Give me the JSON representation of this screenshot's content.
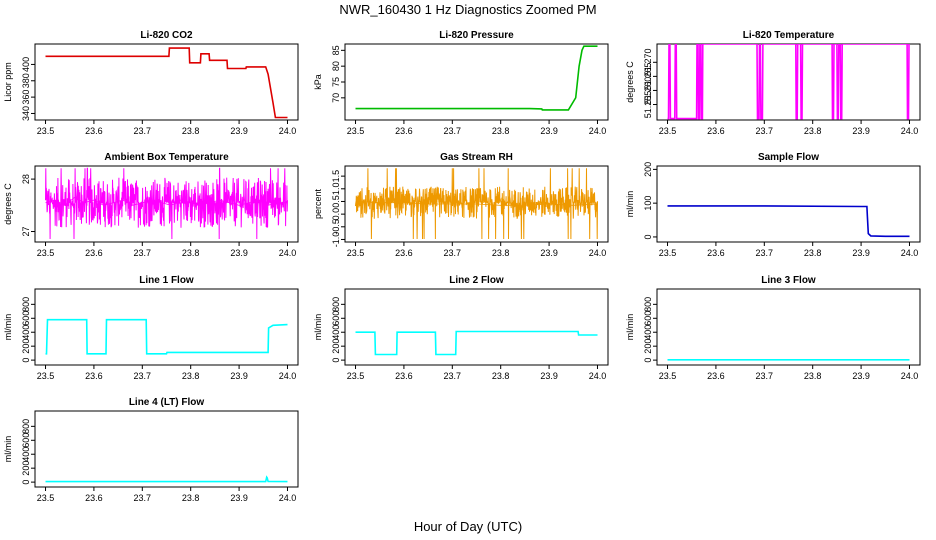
{
  "title": "NWR_160430  1 Hz Diagnostics Zoomed PM",
  "xlabel": "Hour of Day (UTC)",
  "chart_data": [
    {
      "type": "line",
      "title": "Li-820 CO2",
      "ylabel": "Licor ppm",
      "color": "#dd0000",
      "xlim": [
        23.5,
        24.0
      ],
      "ylim": [
        332,
        425
      ],
      "xticks": [
        23.5,
        23.6,
        23.7,
        23.8,
        23.9,
        24.0
      ],
      "yticks": [
        340,
        360,
        380,
        400
      ],
      "x": [
        23.5,
        23.755,
        23.756,
        23.762,
        23.797,
        23.798,
        23.82,
        23.821,
        23.838,
        23.839,
        23.875,
        23.876,
        23.914,
        23.915,
        23.955,
        23.96,
        23.97,
        23.975,
        24.0
      ],
      "y": [
        410,
        410,
        420,
        420,
        420,
        402,
        402,
        413,
        413,
        405,
        405,
        395,
        395,
        397,
        397,
        388,
        353,
        335,
        335
      ]
    },
    {
      "type": "line",
      "title": "Li-820 Pressure",
      "ylabel": "kPa",
      "color": "#00bb00",
      "xlim": [
        23.5,
        24.0
      ],
      "ylim": [
        63,
        87
      ],
      "xticks": [
        23.5,
        23.6,
        23.7,
        23.8,
        23.9,
        24.0
      ],
      "yticks": [
        70,
        75,
        80,
        85
      ],
      "x": [
        23.5,
        23.7,
        23.86,
        23.885,
        23.886,
        23.94,
        23.955,
        23.962,
        23.968,
        23.972,
        24.0
      ],
      "y": [
        66.6,
        66.6,
        66.6,
        66.5,
        66.2,
        66.2,
        70,
        80,
        85,
        86.3,
        86.3
      ]
    },
    {
      "type": "line",
      "title": "Li-820 Temperature",
      "ylabel": "degrees C",
      "color": "#ff00ff",
      "xlim": [
        23.5,
        24.0
      ],
      "ylim": [
        51.2495,
        51.2765
      ],
      "xticks": [
        23.5,
        23.6,
        23.7,
        23.8,
        23.9,
        24.0
      ],
      "yticks": [
        51.255,
        51.26,
        51.265,
        51.27
      ],
      "x": [
        23.5,
        23.502,
        23.503,
        23.505,
        23.506,
        23.515,
        23.516,
        23.518,
        23.519,
        23.56,
        23.561,
        23.563,
        23.564,
        23.566,
        23.567,
        23.569,
        23.57,
        23.572,
        23.573,
        23.685,
        23.686,
        23.689,
        23.69,
        23.692,
        23.693,
        23.696,
        23.697,
        23.765,
        23.766,
        23.768,
        23.769,
        23.775,
        23.776,
        23.778,
        23.779,
        23.84,
        23.841,
        23.843,
        23.844,
        23.85,
        23.851,
        23.853,
        23.854,
        23.857,
        23.858,
        23.86,
        23.861,
        23.995,
        23.996,
        23.998,
        23.999,
        24.0
      ],
      "y": [
        51.25,
        51.25,
        51.2765,
        51.2765,
        51.25,
        51.25,
        51.2765,
        51.2765,
        51.25,
        51.25,
        51.2765,
        51.2765,
        51.25,
        51.25,
        51.2765,
        51.2765,
        51.25,
        51.25,
        51.2765,
        51.2765,
        51.25,
        51.25,
        51.2765,
        51.2765,
        51.25,
        51.25,
        51.2765,
        51.2765,
        51.25,
        51.25,
        51.2765,
        51.2765,
        51.25,
        51.25,
        51.2765,
        51.2765,
        51.25,
        51.25,
        51.2765,
        51.2765,
        51.25,
        51.25,
        51.2765,
        51.2765,
        51.25,
        51.25,
        51.2765,
        51.2765,
        51.25,
        51.25,
        51.2765,
        51.2765
      ]
    },
    {
      "type": "line",
      "title": "Ambient Box Temperature",
      "ylabel": "degrees C",
      "color": "#ff00ff",
      "xlim": [
        23.5,
        24.0
      ],
      "ylim": [
        26.3,
        27.75
      ],
      "xticks": [
        23.5,
        23.6,
        23.7,
        23.8,
        23.9,
        24.0
      ],
      "yticks": [
        26.5,
        27.5
      ],
      "x": [
        23.5,
        23.52,
        23.54,
        23.56,
        23.58,
        23.6,
        23.62,
        23.64,
        23.66,
        23.68,
        23.7,
        23.72,
        23.74,
        23.76,
        23.78,
        23.8,
        23.82,
        23.84,
        23.86,
        23.88,
        23.9,
        23.92,
        23.94,
        23.96,
        23.98,
        24.0
      ],
      "y": [
        27.05,
        27.1,
        27.0,
        27.15,
        27.05,
        27.1,
        27.0,
        27.05,
        27.1,
        27.0,
        27.05,
        27.1,
        27.05,
        27.0,
        27.1,
        27.05,
        27.0,
        27.05,
        27.1,
        27.05,
        27.0,
        27.05,
        27.1,
        27.0,
        27.05,
        27.05
      ],
      "band": [
        26.75,
        27.35
      ]
    },
    {
      "type": "line",
      "title": "Gas Stream RH",
      "ylabel": "percent",
      "color": "#ee9900",
      "xlim": [
        23.5,
        24.0
      ],
      "ylim": [
        -1.1,
        1.9
      ],
      "xticks": [
        23.5,
        23.6,
        23.7,
        23.8,
        23.9,
        24.0
      ],
      "yticks": [
        -1.0,
        -0.5,
        0.0,
        0.5,
        1.0,
        1.5
      ],
      "x": [
        23.5,
        23.55,
        23.6,
        23.65,
        23.7,
        23.75,
        23.8,
        23.85,
        23.9,
        23.95,
        24.0
      ],
      "y": [
        0.5,
        0.45,
        0.45,
        0.4,
        0.4,
        0.4,
        0.35,
        0.35,
        0.4,
        0.35,
        0.4
      ],
      "band": [
        0.05,
        0.85
      ]
    },
    {
      "type": "line",
      "title": "Sample Flow",
      "ylabel": "ml/min",
      "color": "#0000cc",
      "xlim": [
        23.5,
        24.0
      ],
      "ylim": [
        -15,
        210
      ],
      "xticks": [
        23.5,
        23.6,
        23.7,
        23.8,
        23.9,
        24.0
      ],
      "yticks": [
        0,
        100,
        200
      ],
      "x": [
        23.5,
        23.7,
        23.9,
        23.912,
        23.913,
        23.915,
        23.92,
        23.95,
        24.0
      ],
      "y": [
        92,
        92,
        90,
        90,
        60,
        10,
        3,
        2,
        2
      ]
    },
    {
      "type": "line",
      "title": "Line 1 Flow",
      "ylabel": "ml/min",
      "color": "#00ffff",
      "xlim": [
        23.5,
        24.0
      ],
      "ylim": [
        -70,
        1020
      ],
      "xticks": [
        23.5,
        23.6,
        23.7,
        23.8,
        23.9,
        24.0
      ],
      "yticks": [
        0,
        200,
        400,
        600,
        800
      ],
      "x": [
        23.5,
        23.502,
        23.504,
        23.585,
        23.586,
        23.625,
        23.626,
        23.708,
        23.709,
        23.75,
        23.751,
        23.96,
        23.961,
        23.97,
        24.0
      ],
      "y": [
        90,
        90,
        580,
        580,
        90,
        90,
        580,
        580,
        90,
        90,
        110,
        110,
        460,
        500,
        510
      ]
    },
    {
      "type": "line",
      "title": "Line 2 Flow",
      "ylabel": "ml/min",
      "color": "#00ffff",
      "xlim": [
        23.5,
        24.0
      ],
      "ylim": [
        -70,
        1020
      ],
      "xticks": [
        23.5,
        23.6,
        23.7,
        23.8,
        23.9,
        24.0
      ],
      "yticks": [
        0,
        200,
        400,
        600,
        800
      ],
      "x": [
        23.5,
        23.54,
        23.541,
        23.585,
        23.586,
        23.665,
        23.666,
        23.707,
        23.708,
        23.96,
        23.961,
        24.0
      ],
      "y": [
        400,
        400,
        80,
        80,
        400,
        400,
        80,
        80,
        410,
        410,
        360,
        360
      ]
    },
    {
      "type": "line",
      "title": "Line 3 Flow",
      "ylabel": "ml/min",
      "color": "#00ffff",
      "xlim": [
        23.5,
        24.0
      ],
      "ylim": [
        -70,
        1020
      ],
      "xticks": [
        23.5,
        23.6,
        23.7,
        23.8,
        23.9,
        24.0
      ],
      "yticks": [
        0,
        200,
        400,
        600,
        800
      ],
      "x": [
        23.5,
        24.0
      ],
      "y": [
        5,
        5
      ]
    },
    {
      "type": "line",
      "title": "Line 4 (LT) Flow",
      "ylabel": "ml/min",
      "color": "#00ffff",
      "xlim": [
        23.5,
        24.0
      ],
      "ylim": [
        -70,
        1020
      ],
      "xticks": [
        23.5,
        23.6,
        23.7,
        23.8,
        23.9,
        24.0
      ],
      "yticks": [
        0,
        200,
        400,
        600,
        800
      ],
      "x": [
        23.5,
        23.955,
        23.957,
        23.958,
        23.96,
        24.0
      ],
      "y": [
        8,
        8,
        70,
        60,
        10,
        8
      ]
    }
  ]
}
